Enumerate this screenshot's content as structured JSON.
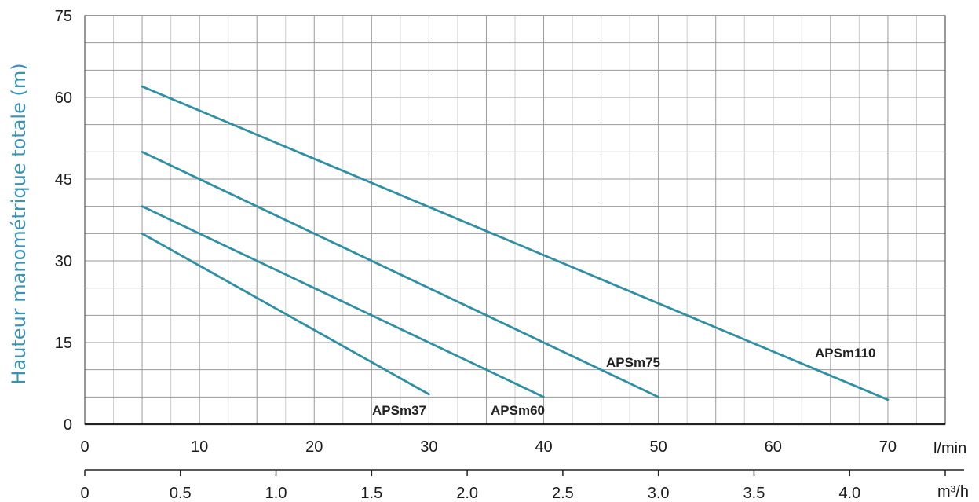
{
  "chart_data": {
    "type": "line",
    "title": "",
    "ylabel": "Hauteur manométrique totale (m)",
    "xlabel": "",
    "x_unit": "l/min",
    "x2_unit": "m³/h",
    "ylim": [
      0,
      75
    ],
    "xlim": [
      0,
      75
    ],
    "x2lim": [
      0,
      4.5
    ],
    "y_ticks": [
      0,
      15,
      30,
      45,
      60,
      75
    ],
    "x_ticks": [
      0,
      10,
      20,
      30,
      40,
      50,
      60,
      70
    ],
    "x2_ticks": [
      "0",
      "0.5",
      "1.0",
      "1.5",
      "2.0",
      "2.5",
      "3.0",
      "3.5",
      "4.0"
    ],
    "grid": true,
    "series": [
      {
        "name": "APSm37",
        "x": [
          5,
          30
        ],
        "y": [
          35,
          5.5
        ]
      },
      {
        "name": "APSm60",
        "x": [
          5,
          40
        ],
        "y": [
          40,
          5
        ]
      },
      {
        "name": "APSm75",
        "x": [
          5,
          50
        ],
        "y": [
          50,
          5
        ]
      },
      {
        "name": "APSm110",
        "x": [
          5,
          70
        ],
        "y": [
          62,
          4.5
        ]
      }
    ]
  },
  "colors": {
    "line": "#2f8fa3",
    "ylabel": "#3a93b3",
    "grid_major": "#9a9a9a",
    "grid_minor": "#cccccc"
  }
}
